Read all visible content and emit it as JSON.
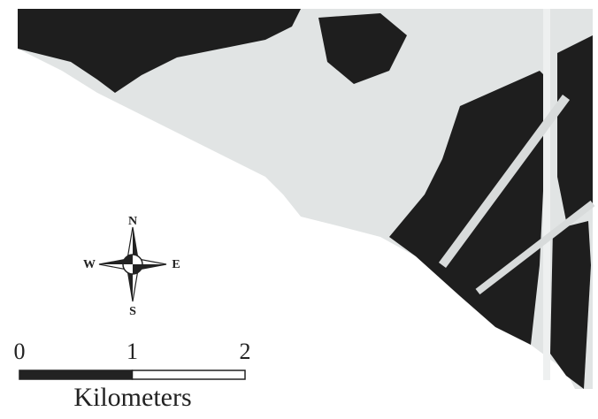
{
  "compass": {
    "north": "N",
    "west": "W",
    "east": "E",
    "south": "S"
  },
  "scale_bar": {
    "ticks": [
      0,
      1,
      2
    ],
    "unit": "Kilometers"
  }
}
